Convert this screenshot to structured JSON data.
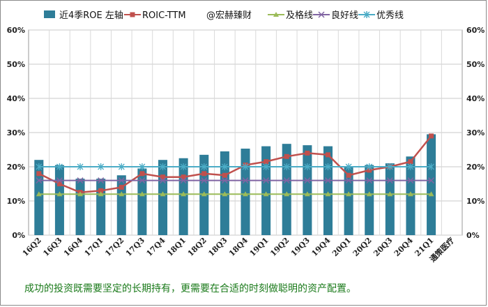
{
  "caption": "成功的投资既需要坚定的长期持有，更需要在合适的时刻做聪明的资产配置。",
  "watermark": "@宏赫臻财",
  "chart_data": {
    "type": "bar",
    "categories": [
      "16Q2",
      "16Q3",
      "16Q4",
      "17Q1",
      "17Q2",
      "17Q3",
      "17Q4",
      "18Q1",
      "18Q2",
      "18Q3",
      "18Q4",
      "19Q1",
      "19Q2",
      "19Q3",
      "19Q4",
      "20Q1",
      "20Q2",
      "20Q3",
      "20Q4",
      "21Q1",
      "通策医疗"
    ],
    "yticks": [
      "0%",
      "10%",
      "20%",
      "30%",
      "40%",
      "50%",
      "60%"
    ],
    "ylim": [
      0,
      60
    ],
    "grid": true,
    "legend_position": "top",
    "series": [
      {
        "name": "近4季ROE 左轴",
        "kind": "bar",
        "color": "#2e7d98",
        "values": [
          22,
          20.5,
          16.5,
          16.5,
          17.5,
          19.5,
          22,
          22.5,
          23.5,
          24.5,
          25.3,
          26,
          26.7,
          26.3,
          26,
          20,
          20.5,
          21,
          23,
          29.5,
          null
        ]
      },
      {
        "name": "ROIC-TTM",
        "kind": "line",
        "color": "#c0504d",
        "values": [
          18,
          15,
          12.5,
          13,
          14,
          18,
          17,
          17,
          18,
          17.5,
          20.5,
          21.5,
          23,
          24,
          23.5,
          17.5,
          19,
          20,
          21.5,
          29,
          null
        ]
      },
      {
        "name": "及格线",
        "kind": "line",
        "color": "#9bbb59",
        "values": [
          12,
          12,
          12,
          12,
          12,
          12,
          12,
          12,
          12,
          12,
          12,
          12,
          12,
          12,
          12,
          12,
          12,
          12,
          12,
          12,
          null
        ]
      },
      {
        "name": "良好线",
        "kind": "line",
        "color": "#8064a2",
        "values": [
          16,
          16,
          16,
          16,
          16,
          16,
          16,
          16,
          16,
          16,
          16,
          16,
          16,
          16,
          16,
          16,
          16,
          16,
          16,
          16,
          null
        ]
      },
      {
        "name": "优秀线",
        "kind": "line",
        "color": "#4bacc6",
        "values": [
          20,
          20,
          20,
          20,
          20,
          20,
          20,
          20,
          20,
          20,
          20,
          20,
          20,
          20,
          20,
          20,
          20,
          20,
          20,
          20,
          null
        ]
      }
    ]
  }
}
